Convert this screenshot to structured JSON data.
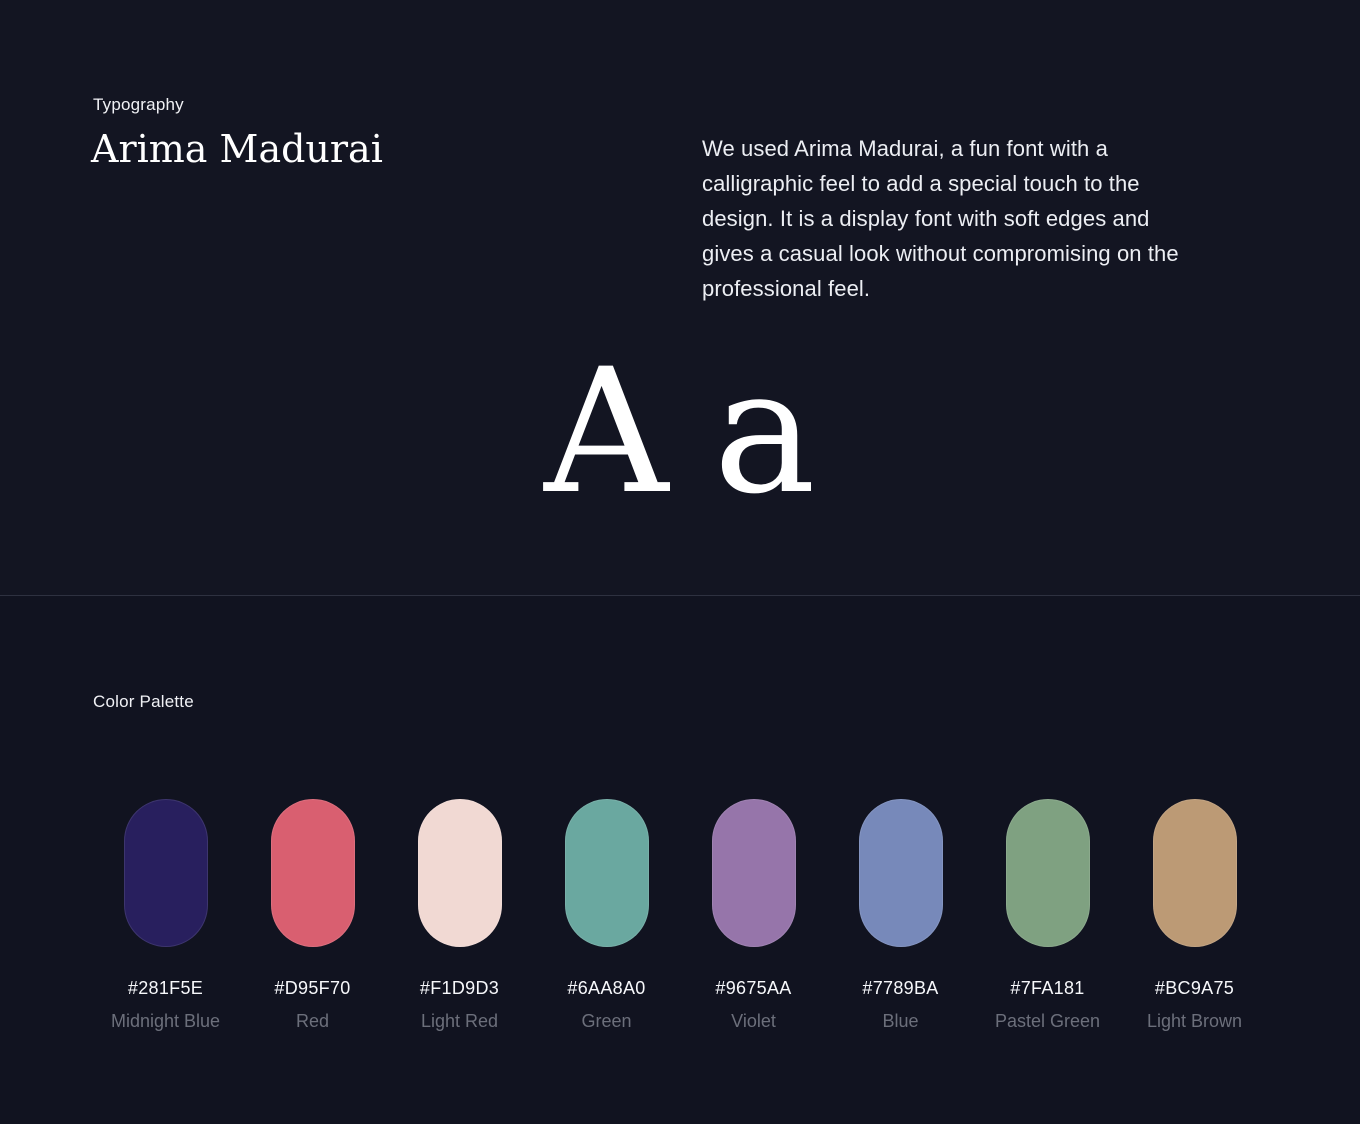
{
  "typography": {
    "eyebrow": "Typography",
    "font_name": "Arima Madurai",
    "description": "We used Arima Madurai, a fun font with a calligraphic feel to add a special touch to the design. It is a display font with soft edges and gives a casual look without compromising on the professional feel.",
    "specimen_upper": "A",
    "specimen_lower": "a"
  },
  "palette": {
    "title": "Color Palette",
    "swatches": [
      {
        "hex": "#281F5E",
        "name": "Midnight Blue"
      },
      {
        "hex": "#D95F70",
        "name": "Red"
      },
      {
        "hex": "#F1D9D3",
        "name": "Light Red"
      },
      {
        "hex": "#6AA8A0",
        "name": "Green"
      },
      {
        "hex": "#9675AA",
        "name": "Violet"
      },
      {
        "hex": "#7789BA",
        "name": "Blue"
      },
      {
        "hex": "#7FA181",
        "name": "Pastel Green"
      },
      {
        "hex": "#BC9A75",
        "name": "Light Brown"
      }
    ]
  },
  "colors": {
    "background_top": "#131522",
    "background_bottom": "#111320",
    "divider": "#2E3140",
    "text_primary": "#F0F1F5",
    "text_secondary": "#6C6F7B"
  }
}
